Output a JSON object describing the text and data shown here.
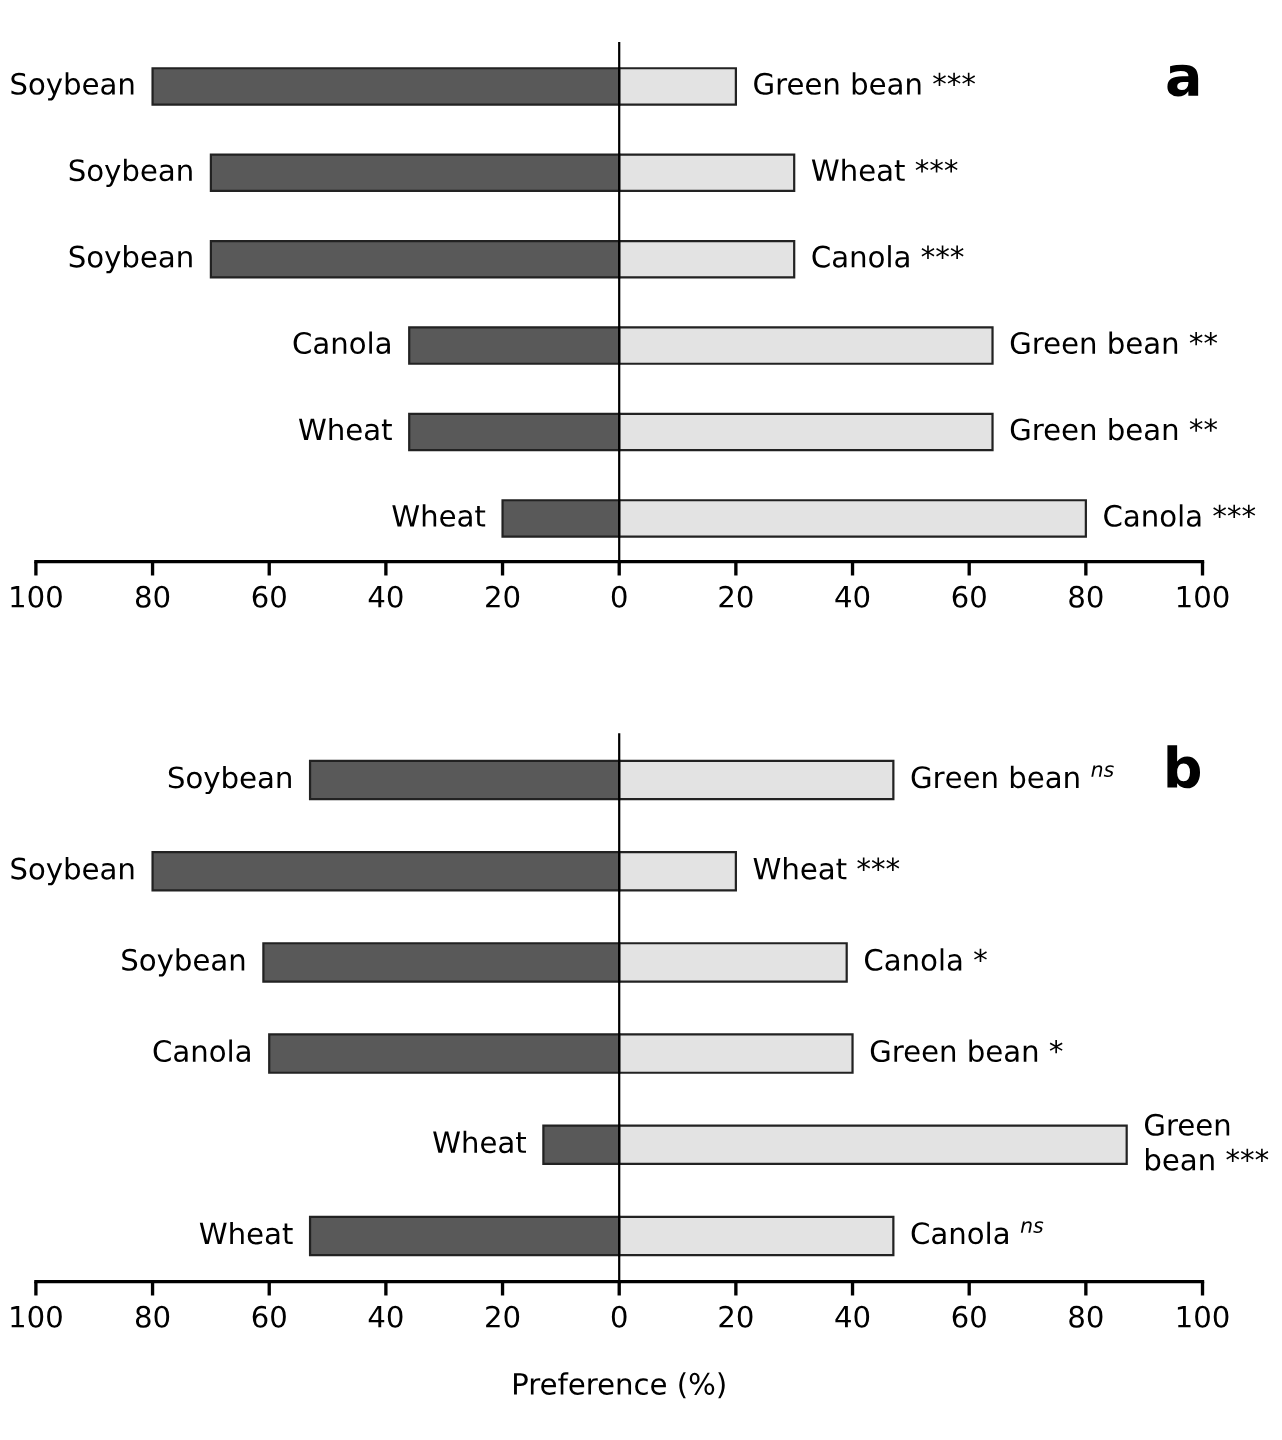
{
  "chart_data": [
    {
      "type": "bar",
      "orientation": "horizontal",
      "stacked": true,
      "categories": [
        null,
        null,
        null,
        null,
        null,
        null
      ],
      "tick_labels": "x",
      "xlim": [
        -100,
        100
      ],
      "xticks": [
        {
          "value": -100,
          "label": "100"
        },
        {
          "value": -80,
          "label": "80"
        },
        {
          "value": -60,
          "label": "60"
        },
        {
          "value": -40,
          "label": "40"
        },
        {
          "value": -20,
          "label": "20"
        },
        0,
        20,
        40,
        60,
        80,
        100
      ],
      "series": [
        {
          "color": "#595959",
          "values": [
            -80,
            -70,
            -70,
            -36,
            -36,
            -20
          ],
          "value_labels": [
            "Soybean",
            "Soybean",
            "Soybean",
            "Canola",
            "Wheat",
            "Wheat"
          ]
        },
        {
          "color": "#e3e3e3",
          "values": [
            20,
            30,
            30,
            64,
            64,
            80
          ],
          "value_labels": [
            "Green bean ***",
            "Wheat ***",
            "Canola ***",
            "Green bean **",
            "Green bean **",
            "Canola ***"
          ]
        }
      ],
      "annotations": [
        "a"
      ]
    },
    {
      "type": "bar",
      "orientation": "horizontal",
      "stacked": true,
      "categories": [
        null,
        null,
        null,
        null,
        null,
        null
      ],
      "tick_labels": "x",
      "xlim": [
        -100,
        100
      ],
      "xticks": [
        {
          "value": -100,
          "label": "100"
        },
        {
          "value": -80,
          "label": "80"
        },
        {
          "value": -60,
          "label": "60"
        },
        {
          "value": -40,
          "label": "40"
        },
        {
          "value": -20,
          "label": "20"
        },
        0,
        20,
        40,
        60,
        80,
        100
      ],
      "xlabel": "Preference (%)",
      "series": [
        {
          "color": "#595959",
          "values": [
            -53,
            -80,
            -61,
            -60,
            -13,
            -53
          ],
          "value_labels": [
            "Soybean",
            "Soybean",
            "Soybean",
            "Canola",
            "Wheat",
            "Wheat"
          ]
        },
        {
          "color": "#e3e3e3",
          "values": [
            47,
            20,
            39,
            40,
            87,
            47
          ],
          "value_labels": [
            "Green bean $^{ns}$",
            "Wheat ***",
            "Canola *",
            "Green bean *",
            "Green\nbean ***",
            "Canola $^{ns}$"
          ]
        }
      ],
      "annotations": [
        "b"
      ]
    }
  ]
}
